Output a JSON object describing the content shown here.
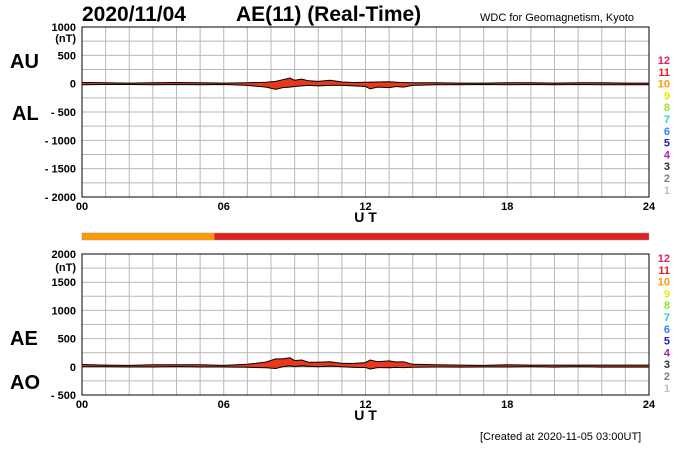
{
  "header": {
    "date": "2020/11/04",
    "title": "AE(11) (Real-Time)",
    "source": "WDC for Geomagnetism, Kyoto"
  },
  "footer": {
    "created": "[Created at 2020-11-05 03:00UT]"
  },
  "station_count_legend": {
    "labels": [
      "12",
      "11",
      "10",
      "9",
      "8",
      "7",
      "6",
      "5",
      "4",
      "3",
      "2",
      "1"
    ],
    "colors": [
      "#e0206a",
      "#e02020",
      "#ff9900",
      "#e8e800",
      "#99e030",
      "#33cccc",
      "#2a7fff",
      "#2020c0",
      "#b020b0",
      "#303030",
      "#808080",
      "#c0c0c0"
    ]
  },
  "side_labels": {
    "top_upper": "AU",
    "top_lower": "AL",
    "bottom_upper": "AE",
    "bottom_lower": "AO"
  },
  "station_strip": {
    "segments": [
      {
        "start": 0,
        "end": 5.6,
        "stations": 10
      },
      {
        "start": 5.6,
        "end": 24,
        "stations": 11
      }
    ]
  },
  "chart_data": [
    {
      "type": "line",
      "name": "AU/AL panel",
      "unit": "(nT)",
      "xlabel": "U T",
      "x_ticks": [
        "00",
        "06",
        "12",
        "18",
        "24"
      ],
      "xlim": [
        0,
        24
      ],
      "ylim": [
        -2000,
        1000
      ],
      "y_ticks": [
        "1000",
        "500",
        "0",
        "- 500",
        "- 1000",
        "- 1500",
        "- 2000"
      ],
      "y_tick_values": [
        1000,
        500,
        0,
        -500,
        -1000,
        -1500,
        -2000
      ],
      "grid": true,
      "series": [
        {
          "x": [
            0,
            1,
            2,
            3,
            4,
            5,
            6,
            7,
            7.8,
            8.2,
            8.5,
            8.8,
            9.0,
            9.3,
            9.6,
            10,
            10.5,
            11,
            11.5,
            12,
            12.5,
            13,
            13.5,
            14,
            15,
            16,
            17,
            18,
            19,
            20,
            21,
            22,
            23,
            24
          ],
          "values": [
            20,
            15,
            10,
            15,
            20,
            15,
            10,
            15,
            25,
            40,
            70,
            100,
            60,
            80,
            50,
            40,
            60,
            30,
            20,
            25,
            30,
            35,
            20,
            15,
            15,
            10,
            10,
            15,
            15,
            10,
            15,
            15,
            10,
            10
          ]
        },
        {
          "x": [
            0,
            1,
            2,
            3,
            4,
            5,
            6,
            7,
            7.8,
            8.2,
            8.5,
            8.8,
            9.0,
            9.3,
            9.6,
            10,
            10.5,
            11,
            11.5,
            12,
            12.2,
            12.5,
            13,
            13.3,
            13.6,
            14,
            15,
            16,
            17,
            18,
            19,
            20,
            21,
            22,
            23,
            24
          ],
          "values": [
            -20,
            -15,
            -15,
            -20,
            -15,
            -20,
            -15,
            -30,
            -60,
            -100,
            -70,
            -60,
            -50,
            -40,
            -30,
            -40,
            -30,
            -30,
            -40,
            -50,
            -90,
            -60,
            -70,
            -50,
            -60,
            -30,
            -20,
            -20,
            -15,
            -20,
            -15,
            -20,
            -15,
            -20,
            -20,
            -20
          ]
        }
      ]
    },
    {
      "type": "line",
      "name": "AE/AO panel",
      "unit": "(nT)",
      "xlabel": "U T",
      "x_ticks": [
        "00",
        "06",
        "12",
        "18",
        "24"
      ],
      "xlim": [
        0,
        24
      ],
      "ylim": [
        -500,
        2000
      ],
      "y_ticks": [
        "2000",
        "1500",
        "1000",
        "500",
        "0",
        "- 500"
      ],
      "y_tick_values": [
        2000,
        1500,
        1000,
        500,
        0,
        -500
      ],
      "grid": true,
      "series": [
        {
          "x": [
            0,
            1,
            2,
            3,
            4,
            5,
            6,
            7,
            7.8,
            8.2,
            8.5,
            8.8,
            9.0,
            9.3,
            9.6,
            10,
            10.5,
            11,
            11.5,
            12,
            12.2,
            12.5,
            13,
            13.3,
            13.6,
            14,
            15,
            16,
            17,
            18,
            19,
            20,
            21,
            22,
            23,
            24
          ],
          "values": [
            40,
            30,
            25,
            35,
            35,
            35,
            25,
            45,
            85,
            140,
            140,
            160,
            110,
            120,
            80,
            80,
            90,
            60,
            60,
            75,
            120,
            90,
            105,
            85,
            90,
            45,
            35,
            30,
            25,
            35,
            30,
            30,
            30,
            30,
            30,
            30
          ]
        },
        {
          "x": [
            0,
            1,
            2,
            3,
            4,
            5,
            6,
            7,
            7.8,
            8.2,
            8.5,
            8.8,
            9.0,
            9.3,
            9.6,
            10,
            10.5,
            11,
            11.5,
            12,
            12.2,
            12.5,
            13,
            13.3,
            13.6,
            14,
            15,
            16,
            17,
            18,
            19,
            20,
            21,
            22,
            23,
            24
          ],
          "values": [
            0,
            0,
            -3,
            -3,
            3,
            -3,
            -3,
            -8,
            -18,
            -30,
            0,
            20,
            5,
            20,
            10,
            0,
            15,
            0,
            -10,
            -12,
            -40,
            -15,
            -18,
            -10,
            -15,
            -8,
            -3,
            -5,
            -3,
            -3,
            0,
            -5,
            0,
            -5,
            -5,
            -5
          ]
        }
      ]
    }
  ]
}
